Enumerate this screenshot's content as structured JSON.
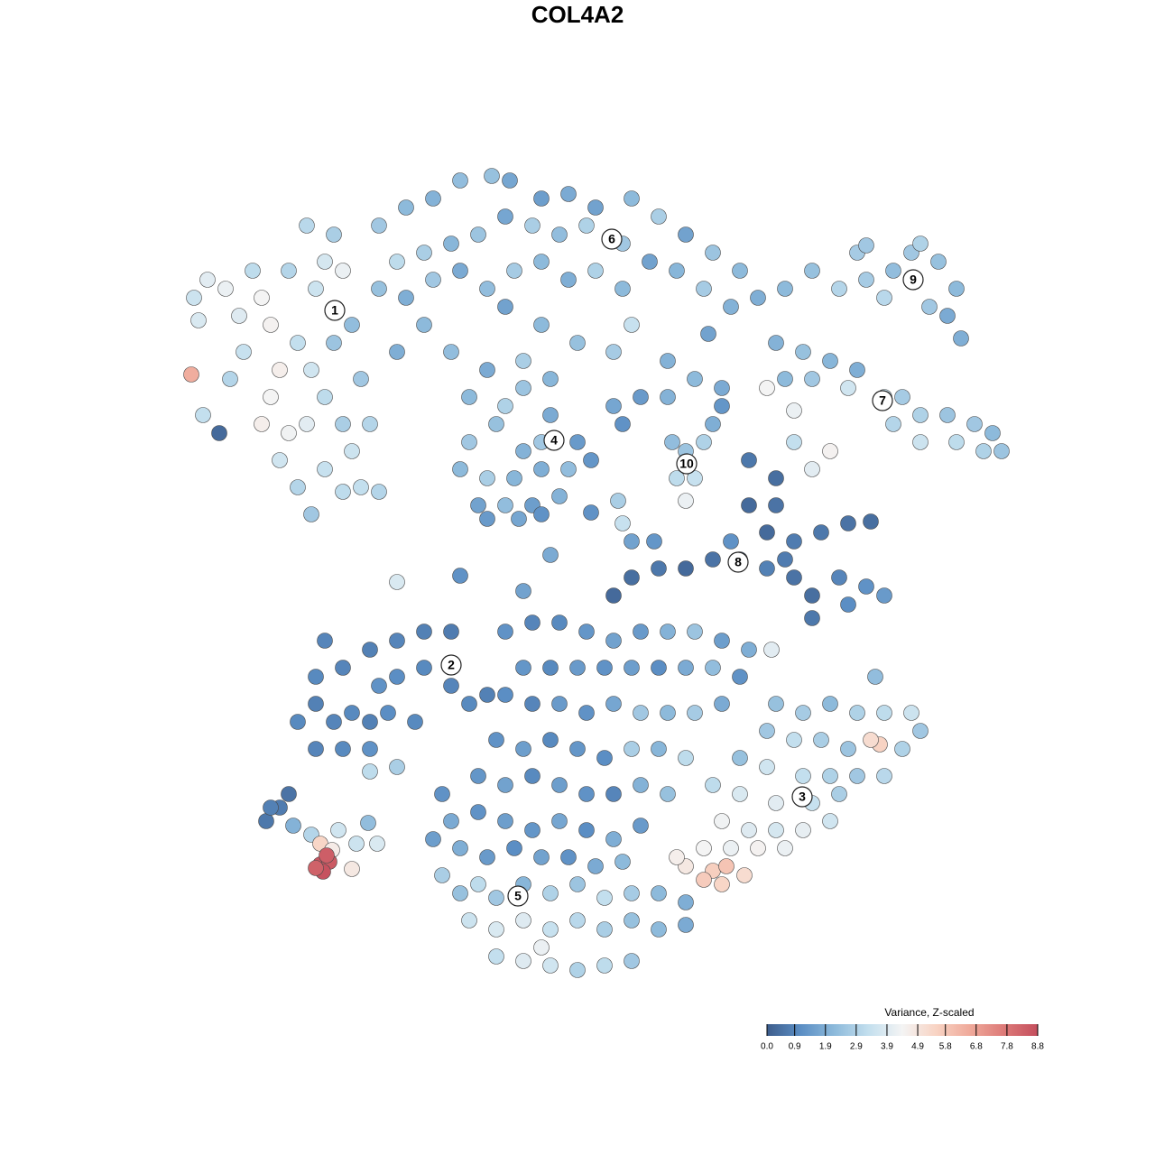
{
  "chart_data": {
    "type": "scatter",
    "title": "COL4A2",
    "xlim": [
      0,
      93
    ],
    "ylim": [
      0,
      91
    ],
    "clim": [
      0,
      8.8
    ],
    "colorscale": [
      "#3d5d8c",
      "#5b8ec4",
      "#8dbadb",
      "#c3dfee",
      "#f4f4f4",
      "#f8d3c3",
      "#efa99a",
      "#dd7a78",
      "#c44e5d"
    ],
    "colorbar_title": "Variance, Z-scaled",
    "colorbar_ticks": [
      {
        "value": 0,
        "label": "0.0"
      },
      0.9,
      1.9,
      2.9,
      3.9,
      4.9,
      5.8,
      6.8,
      7.8,
      8.8
    ],
    "cluster_labels": {
      "labels": [
        "1",
        "2",
        "3",
        "4",
        "5",
        "6",
        "7",
        "8",
        "9",
        "10"
      ],
      "x": [
        17.1,
        30,
        68.9,
        41.4,
        37.4,
        47.8,
        77.8,
        61.8,
        81.2,
        56.1
      ],
      "y": [
        75.1,
        35.8,
        21.2,
        60.7,
        10.2,
        83,
        65.1,
        47.2,
        78.5,
        58.1
      ]
    },
    "x": [
      1.5,
      3,
      2,
      1.2,
      2.5,
      4.3,
      5,
      6.5,
      8,
      9,
      10,
      11,
      10,
      9,
      12,
      11,
      13,
      14.5,
      16,
      18,
      20,
      22,
      14,
      17,
      16,
      18,
      15,
      13,
      14.5,
      17,
      19,
      16,
      18,
      14,
      20,
      21,
      12,
      7,
      5.5,
      19,
      22,
      25,
      28,
      31,
      34.5,
      36.5,
      40,
      43,
      46,
      50,
      53,
      56,
      59,
      62,
      64,
      61,
      58,
      55,
      52,
      49,
      45,
      42,
      39,
      36,
      33,
      30,
      27,
      24,
      22,
      25,
      28,
      31,
      34,
      37,
      40,
      43,
      46,
      49,
      50,
      48,
      44,
      40,
      36,
      27,
      24,
      30,
      34,
      38,
      54,
      58.5,
      38,
      35,
      41,
      44,
      32,
      31,
      34,
      37,
      40,
      43,
      45.5,
      33,
      36,
      39,
      42,
      34,
      37.5,
      40,
      32,
      38,
      41,
      36,
      40,
      48,
      51,
      54,
      57,
      60,
      49,
      56,
      54.5,
      58,
      55,
      57,
      56,
      59,
      60,
      67,
      70,
      73,
      76,
      79,
      81,
      84,
      86,
      85,
      83,
      75,
      78,
      82,
      86.5,
      76,
      66,
      69,
      72,
      75,
      70,
      67,
      78,
      80,
      82,
      85,
      88,
      90,
      91,
      89,
      86,
      82,
      79,
      74,
      65,
      68,
      72,
      70,
      68,
      63,
      66,
      63,
      66,
      65,
      68,
      71,
      74,
      76.5,
      62,
      59,
      56,
      53,
      50,
      48,
      65,
      68,
      70,
      73,
      76,
      78,
      70,
      74,
      67,
      61,
      24,
      31,
      38,
      41,
      50,
      52.5,
      48.5,
      45.5,
      49,
      13,
      15,
      17,
      19,
      21,
      23,
      15,
      18,
      21,
      15,
      18,
      21,
      24,
      27,
      30,
      27,
      24,
      22,
      30,
      32,
      34,
      16,
      21,
      24,
      26,
      36,
      39,
      42,
      45,
      48,
      51,
      54,
      57,
      60,
      63,
      65.5,
      62,
      59,
      56,
      53,
      50,
      47,
      44,
      41,
      38,
      36,
      39,
      42,
      45,
      48,
      51,
      54,
      57,
      60,
      35,
      38,
      41,
      44,
      47,
      50,
      53,
      56,
      33,
      36,
      39,
      42,
      45,
      48,
      51,
      54,
      29,
      30,
      33,
      36,
      39,
      42,
      45,
      48,
      51,
      28,
      31,
      34,
      37,
      40,
      43,
      46,
      49,
      29,
      31,
      33,
      35,
      38,
      41,
      44,
      47,
      50,
      53,
      56,
      32,
      35,
      38,
      41,
      44,
      47,
      50,
      53,
      56,
      35,
      38,
      41,
      44,
      47,
      50,
      40,
      66,
      69,
      72,
      75,
      78,
      81,
      82,
      77,
      65,
      68,
      71,
      74,
      77.5,
      76.5,
      80,
      62,
      65,
      69,
      72,
      75,
      78,
      59,
      62,
      66,
      70,
      73,
      60,
      63,
      66,
      69,
      72,
      58,
      61,
      64,
      67,
      56,
      59,
      60.5,
      60,
      62.5,
      58,
      55,
      9.5,
      11,
      12,
      10,
      12.5,
      14.5,
      17.5,
      19.5,
      20.8,
      21.8,
      15.5,
      16.8,
      19,
      15.5,
      16.5,
      15.8,
      15,
      16.2
    ],
    "y": [
      76.5,
      78.5,
      74,
      68,
      63.5,
      61.5,
      77.5,
      74.5,
      79.5,
      76.5,
      73.5,
      68.5,
      65.5,
      62.5,
      61.5,
      58.5,
      55.5,
      52.5,
      57.5,
      55,
      55.5,
      55,
      84.5,
      83.5,
      80.5,
      79.5,
      77.5,
      71.5,
      68.5,
      71.5,
      73.5,
      65.5,
      62.5,
      62.5,
      67.5,
      62.5,
      79.5,
      70.5,
      67.5,
      59.5,
      84.5,
      86.5,
      87.5,
      89.5,
      90,
      89.5,
      87.5,
      88,
      86.5,
      87.5,
      85.5,
      83.5,
      81.5,
      79.5,
      76.5,
      75.5,
      77.5,
      79.5,
      80.5,
      82.5,
      84.5,
      83.5,
      84.5,
      85.5,
      83.5,
      82.5,
      81.5,
      80.5,
      77.5,
      76.5,
      78.5,
      79.5,
      77.5,
      79.5,
      80.5,
      78.5,
      79.5,
      77.5,
      73.5,
      70.5,
      71.5,
      73.5,
      75.5,
      73.5,
      70.5,
      70.5,
      68.5,
      69.5,
      69.5,
      72.5,
      59.5,
      62.5,
      63.5,
      60.5,
      60.5,
      57.5,
      56.5,
      56.5,
      57.5,
      57.5,
      58.5,
      53.5,
      53.5,
      53.5,
      54.5,
      52,
      52,
      52.5,
      65.5,
      66.5,
      67.5,
      64.5,
      60.5,
      64.5,
      65.5,
      65.5,
      67.5,
      66.5,
      62.5,
      59.5,
      60.5,
      60.5,
      56.5,
      56.5,
      54,
      62.5,
      64.5,
      77.5,
      79.5,
      77.5,
      78.5,
      79.5,
      81.5,
      80.5,
      77.5,
      74.5,
      75.5,
      81.5,
      76.5,
      82.5,
      72,
      82.3,
      71.5,
      70.5,
      69.5,
      68.5,
      67.5,
      67.5,
      65.5,
      65.5,
      63.5,
      63.5,
      62.5,
      61.5,
      59.5,
      59.5,
      60.5,
      60.5,
      62.5,
      66.5,
      66.5,
      64,
      59.5,
      57.5,
      60.5,
      58.5,
      56.5,
      53.5,
      53.5,
      50.5,
      49.5,
      50.5,
      51.5,
      51.7,
      47.5,
      47.5,
      46.5,
      46.5,
      45.5,
      43.5,
      46.5,
      45.5,
      43.5,
      45.5,
      44.5,
      43.5,
      41,
      42.5,
      47.5,
      49.5,
      45,
      45.7,
      44,
      48,
      49.5,
      49.5,
      54,
      52.7,
      51.5,
      29.5,
      31.5,
      29.5,
      30.5,
      29.5,
      30.5,
      26.5,
      26.5,
      26.5,
      34.5,
      35.5,
      37.5,
      38.5,
      39.5,
      39.5,
      35.5,
      34.5,
      33.5,
      33.5,
      31.5,
      32.5,
      38.5,
      24,
      24.5,
      29.5,
      39.5,
      40.5,
      40.5,
      39.5,
      38.5,
      39.5,
      39.5,
      39.5,
      38.5,
      37.5,
      37.5,
      34.5,
      35.5,
      35.5,
      35.5,
      35.5,
      35.5,
      35.5,
      35.5,
      35.5,
      32.5,
      31.5,
      31.5,
      30.5,
      31.5,
      30.5,
      30.5,
      30.5,
      31.5,
      27.5,
      26.5,
      27.5,
      26.5,
      25.5,
      26.5,
      26.5,
      25.5,
      23.5,
      22.5,
      23.5,
      22.5,
      21.5,
      21.5,
      22.5,
      21.5,
      21.5,
      18.5,
      19.5,
      18.5,
      17.5,
      18.5,
      17.5,
      16.5,
      18,
      16.5,
      15.5,
      14.5,
      15.5,
      14.5,
      14.5,
      13.5,
      14,
      12.5,
      10.5,
      11.5,
      10,
      11.5,
      10.5,
      11.5,
      10,
      10.5,
      10.5,
      9.5,
      7.5,
      6.5,
      7.5,
      6.5,
      7.5,
      6.5,
      7.5,
      6.5,
      7,
      3.5,
      3,
      2.5,
      2,
      2.5,
      3,
      4.5,
      31.5,
      30.5,
      31.5,
      30.5,
      30.5,
      30.5,
      28.5,
      34.5,
      28.5,
      27.5,
      27.5,
      26.5,
      27,
      27.5,
      26.5,
      25.5,
      24.5,
      23.5,
      23.5,
      23.5,
      23.5,
      22.5,
      21.5,
      20.5,
      20.5,
      21.5,
      18.5,
      17.5,
      17.5,
      17.5,
      18.5,
      15.5,
      15.5,
      15.5,
      15.5,
      13.5,
      13,
      13.5,
      11.5,
      12.5,
      12,
      14.5,
      18.5,
      20,
      21.5,
      20,
      18,
      17,
      17.5,
      16,
      18.3,
      16,
      16,
      15.3,
      13.2,
      13.7,
      14,
      12.9,
      13.3,
      14.7
    ],
    "values": [
      3.5,
      4,
      3.8,
      6.5,
      3.3,
      0.3,
      4.2,
      3.9,
      3.2,
      4.4,
      4.5,
      4.6,
      4.4,
      4.6,
      4.3,
      3.6,
      3,
      2.6,
      3.4,
      3.2,
      3.3,
      3,
      3.1,
      2.8,
      3.7,
      4.2,
      3.5,
      3.3,
      3.6,
      2.5,
      2.3,
      3.2,
      2.8,
      4,
      2.6,
      3,
      3,
      3.4,
      3,
      3.5,
      2.6,
      2.2,
      2,
      2.3,
      2.4,
      1.7,
      1.5,
      1.8,
      1.6,
      2.2,
      2.8,
      1.6,
      2.5,
      2.2,
      1.9,
      2,
      2.7,
      2.1,
      1.6,
      2.6,
      2.9,
      2.3,
      2.8,
      1.7,
      2.5,
      2.1,
      2.8,
      3.2,
      2.4,
      1.9,
      2.6,
      1.8,
      2.3,
      2.7,
      2.2,
      1.9,
      2.9,
      2.2,
      3.4,
      2.7,
      2.4,
      2.2,
      1.6,
      2.2,
      1.9,
      2.3,
      1.8,
      2.8,
      2,
      1.6,
      2,
      2.4,
      1.8,
      1.4,
      2.6,
      2.2,
      2.8,
      2.1,
      1.9,
      2.3,
      1.3,
      1.6,
      2.3,
      1.5,
      2,
      1.4,
      1.7,
      1.2,
      2.2,
      2.5,
      2.1,
      2.9,
      2.6,
      1.7,
      1.4,
      2,
      2.2,
      1.8,
      1.2,
      2.5,
      2.3,
      2.9,
      3.2,
      3.4,
      4.2,
      1.9,
      1.3,
      2.2,
      2.4,
      3,
      2.7,
      2.3,
      2.6,
      2.4,
      2.2,
      1.8,
      2.6,
      2.7,
      3.1,
      2.9,
      1.9,
      2.6,
      2,
      2.4,
      2.1,
      1.9,
      2.6,
      2.2,
      3.4,
      2.7,
      2.9,
      2.5,
      2.6,
      2.2,
      2.5,
      2.9,
      3.2,
      3.5,
      3,
      3.6,
      4.4,
      4.2,
      4.5,
      4,
      3.3,
      0.6,
      0.4,
      0.3,
      0.5,
      0.3,
      0.7,
      0.6,
      0.5,
      0.4,
      0.4,
      0.5,
      0.3,
      0.6,
      0.4,
      0.3,
      0.8,
      0.5,
      0.4,
      0.9,
      1.2,
      1.4,
      0.6,
      1.1,
      0.7,
      1.2,
      3.8,
      1.2,
      1.6,
      1.8,
      1.6,
      1.3,
      2.8,
      1.2,
      3.4,
      1,
      0.8,
      0.9,
      1,
      0.8,
      1.1,
      0.9,
      1,
      1.2,
      1,
      0.9,
      0.8,
      0.9,
      0.8,
      0.7,
      1,
      1.1,
      1.2,
      0.9,
      1,
      0.8,
      0.9,
      3.2,
      2.8,
      1,
      1.2,
      0.9,
      1,
      1.3,
      1.6,
      1.4,
      2,
      2.5,
      1.5,
      1.9,
      4,
      1.2,
      2.3,
      1.8,
      1.1,
      1.5,
      1.2,
      1.4,
      1,
      1.3,
      1.1,
      0.9,
      1.4,
      1.2,
      1.7,
      2.6,
      2.2,
      2.7,
      1.8,
      1.2,
      1.5,
      1,
      1.3,
      1.1,
      2.8,
      2.1,
      3.2,
      1.3,
      1.6,
      1,
      1.5,
      1.2,
      0.9,
      2,
      2.4,
      1.2,
      1.8,
      1.2,
      1.5,
      1.3,
      1.7,
      1.1,
      1.9,
      1.4,
      1.5,
      1.9,
      1.4,
      1.1,
      1.6,
      1.2,
      1.8,
      2.2,
      2.8,
      2.4,
      3.2,
      2.6,
      2.1,
      2.9,
      2.5,
      3.3,
      2.7,
      2.2,
      1.9,
      3.5,
      3.8,
      3.9,
      3.4,
      3.1,
      2.8,
      2.4,
      2.2,
      1.8,
      3.3,
      3.9,
      3.6,
      2.9,
      3.2,
      2.6,
      4.2,
      2.4,
      2.7,
      2.2,
      2.9,
      3.2,
      3.5,
      2.6,
      2.3,
      2.6,
      3.3,
      2.8,
      2.5,
      5.5,
      5.2,
      2.9,
      2.4,
      3.6,
      3.3,
      2.9,
      2.6,
      3.1,
      3.2,
      3.8,
      4,
      3.4,
      2.8,
      4.3,
      3.9,
      3.7,
      4.1,
      3.6,
      4.4,
      4.2,
      4.5,
      4.2,
      4.8,
      5.6,
      5.9,
      5.4,
      5.2,
      5.7,
      4.6,
      0.6,
      0.7,
      0.5,
      0.8,
      2,
      3,
      3.6,
      3.5,
      2.3,
      3.8,
      5.4,
      4.7,
      4.8,
      8.6,
      8.5,
      8.7,
      8.3,
      8.4
    ]
  }
}
